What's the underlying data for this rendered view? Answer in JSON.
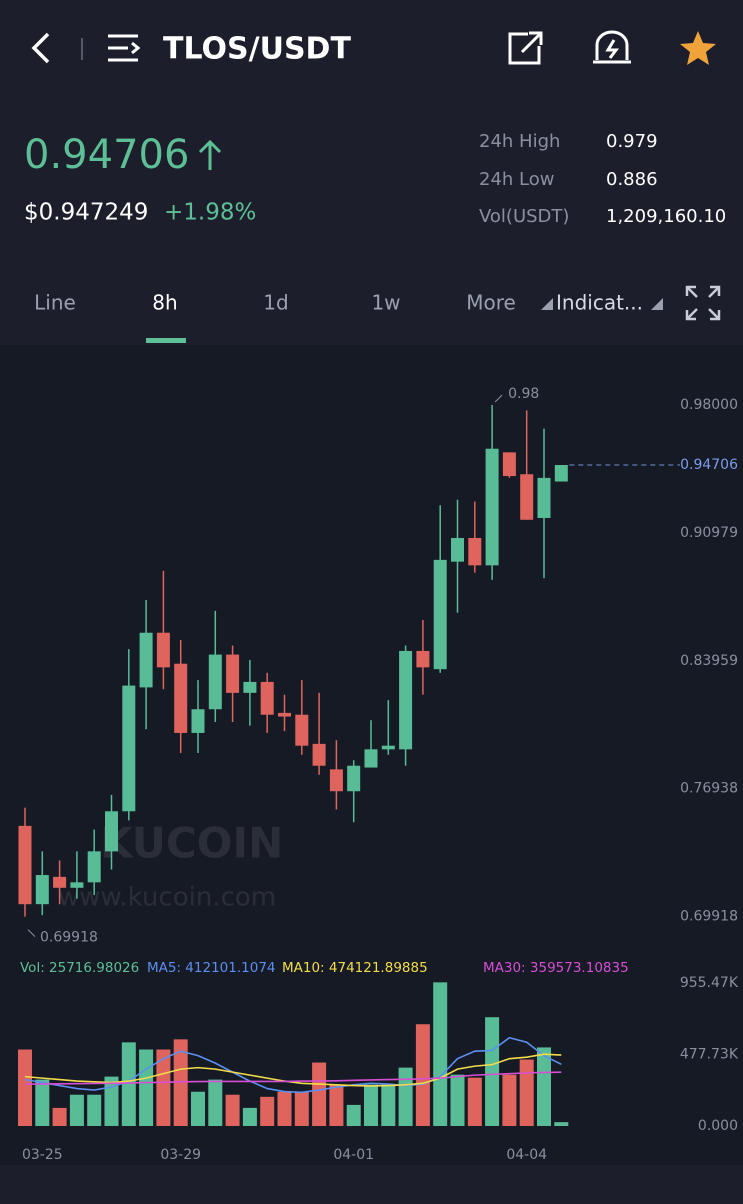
{
  "header": {
    "title": "TLOS/USDT"
  },
  "ticker": {
    "price": "0.94706",
    "usd_price": "$0.947249",
    "change": "+1.98%",
    "stats": [
      {
        "label": "24h High",
        "value": "0.979"
      },
      {
        "label": "24h Low",
        "value": "0.886"
      },
      {
        "label": "Vol(USDT)",
        "value": "1,209,160.10"
      }
    ]
  },
  "tabs": [
    "Line",
    "8h",
    "1d",
    "1w",
    "More",
    "Indicat..."
  ],
  "watermark": {
    "logo": "KUCOIN",
    "url": "www.kucoin.com"
  },
  "chart_data": [
    {
      "type": "candlestick",
      "up_color": "#58bd96",
      "down_color": "#e0645e",
      "grid": false,
      "open": [
        0.749,
        0.706,
        0.721,
        0.715,
        0.718,
        0.735,
        0.757,
        0.825,
        0.855,
        0.838,
        0.8,
        0.813,
        0.843,
        0.822,
        0.828,
        0.811,
        0.81,
        0.794,
        0.78,
        0.768,
        0.781,
        0.791,
        0.791,
        0.845,
        0.835,
        0.894,
        0.907,
        0.892,
        0.954,
        0.942,
        0.918,
        0.938
      ],
      "close": [
        0.706,
        0.722,
        0.715,
        0.718,
        0.735,
        0.757,
        0.826,
        0.855,
        0.836,
        0.8,
        0.813,
        0.843,
        0.822,
        0.828,
        0.81,
        0.809,
        0.793,
        0.782,
        0.768,
        0.782,
        0.791,
        0.793,
        0.845,
        0.836,
        0.895,
        0.907,
        0.892,
        0.956,
        0.941,
        0.917,
        0.94,
        0.94706
      ],
      "high": [
        0.759,
        0.735,
        0.73,
        0.735,
        0.747,
        0.766,
        0.846,
        0.873,
        0.889,
        0.851,
        0.829,
        0.867,
        0.848,
        0.84,
        0.833,
        0.821,
        0.829,
        0.822,
        0.796,
        0.785,
        0.807,
        0.818,
        0.848,
        0.862,
        0.925,
        0.928,
        0.927,
        0.98,
        0.954,
        0.977,
        0.967,
        0.94706
      ],
      "low": [
        0.69918,
        0.7,
        0.706,
        0.709,
        0.711,
        0.725,
        0.752,
        0.802,
        0.824,
        0.789,
        0.789,
        0.806,
        0.806,
        0.804,
        0.8,
        0.801,
        0.788,
        0.777,
        0.758,
        0.751,
        0.781,
        0.788,
        0.782,
        0.821,
        0.833,
        0.866,
        0.888,
        0.884,
        0.94,
        0.917,
        0.885,
        0.938
      ],
      "ylim": [
        0.6836,
        1.0047
      ],
      "yticks": [
        {
          "value": 0.98,
          "label": "0.98000"
        },
        0.90979,
        0.83959,
        0.76938,
        0.69918
      ],
      "last_price": 0.94706,
      "max_label": 0.98,
      "min_label": 0.69918
    },
    {
      "type": "bar",
      "grid": false,
      "categories": [
        null,
        "03-25",
        null,
        null,
        null,
        null,
        null,
        null,
        null,
        "03-29",
        null,
        null,
        null,
        null,
        null,
        null,
        null,
        null,
        null,
        "04-01",
        null,
        null,
        null,
        null,
        null,
        null,
        null,
        null,
        null,
        "04-04",
        null,
        null
      ],
      "ylim": [
        0,
        1009000
      ],
      "yticks": [
        {
          "value": 955470,
          "label": "955.47K"
        },
        {
          "value": 477730,
          "label": "477.73K"
        },
        {
          "value": 0,
          "label": "0.000"
        }
      ],
      "series": [
        {
          "name": "Vol: 25716.98026",
          "color": "#5ebf95",
          "type": "bar",
          "values": [
            511000,
            310000,
            121000,
            209000,
            209000,
            330000,
            559000,
            511000,
            511000,
            579000,
            229000,
            310000,
            209000,
            121000,
            195000,
            229000,
            229000,
            424000,
            276000,
            141000,
            276000,
            276000,
            390000,
            680000,
            960000,
            343000,
            323000,
            727000,
            343000,
            444000,
            525000,
            25716.98026
          ]
        },
        {
          "name": "MA5: 412101.1074",
          "color": "#5b8ff0",
          "type": "line",
          "values": [
            310000,
            290000,
            270000,
            250000,
            240000,
            260000,
            300000,
            380000,
            450000,
            500000,
            470000,
            420000,
            360000,
            300000,
            250000,
            230000,
            225000,
            240000,
            260000,
            275000,
            285000,
            280000,
            270000,
            280000,
            330000,
            450000,
            500000,
            505000,
            590000,
            560000,
            470000,
            412101.1074
          ]
        },
        {
          "name": "MA10: 474121.89885",
          "color": "#f3dc4a",
          "type": "line",
          "values": [
            330000,
            320000,
            310000,
            300000,
            295000,
            290000,
            300000,
            320000,
            350000,
            380000,
            390000,
            380000,
            360000,
            340000,
            320000,
            300000,
            285000,
            280000,
            275000,
            270000,
            268000,
            270000,
            275000,
            285000,
            320000,
            380000,
            400000,
            410000,
            450000,
            460000,
            480000,
            474121.89885
          ]
        },
        {
          "name": "MA30: 359573.10835",
          "color": "#d64fd6",
          "type": "line",
          "values": [
            280000,
            280000,
            282000,
            283000,
            284000,
            285000,
            287000,
            290000,
            292000,
            295000,
            297000,
            298000,
            298000,
            298000,
            298000,
            298000,
            300000,
            300000,
            302000,
            305000,
            308000,
            310000,
            312000,
            315000,
            320000,
            330000,
            340000,
            345000,
            350000,
            355000,
            358000,
            359573.10835
          ]
        }
      ]
    }
  ]
}
